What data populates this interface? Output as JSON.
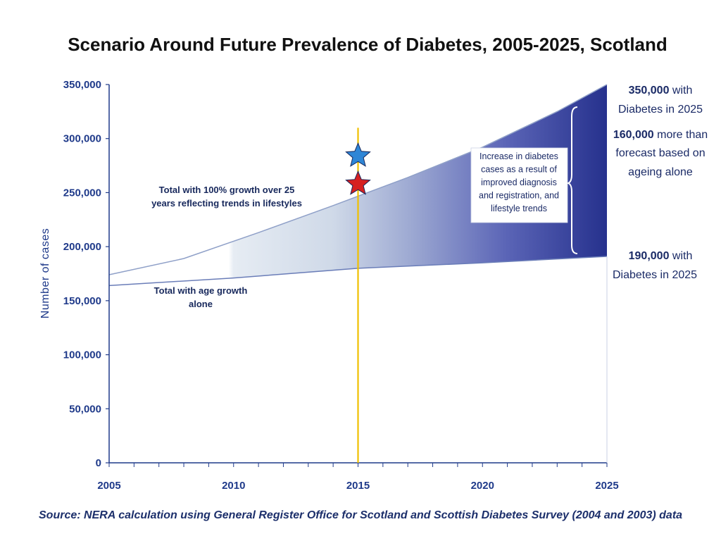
{
  "chart_data": {
    "type": "area",
    "title": "Scenario Around Future Prevalence of Diabetes, 2005-2025, Scotland",
    "xlabel": "",
    "ylabel": "Number of cases",
    "xlim": [
      2005,
      2025
    ],
    "ylim": [
      0,
      350000
    ],
    "x_ticks": [
      "2005",
      "2010",
      "2015",
      "2020",
      "2025"
    ],
    "y_ticks": [
      "0",
      "50,000",
      "100,000",
      "150,000",
      "200,000",
      "250,000",
      "300,000",
      "350,000"
    ],
    "series": [
      {
        "name": "Total with 100% growth over 25 years reflecting trends in lifestyles",
        "x": [
          2005,
          2008,
          2011,
          2014,
          2017,
          2020,
          2023,
          2025
        ],
        "values": [
          174000,
          189000,
          213000,
          238000,
          264000,
          292000,
          325000,
          350000
        ]
      },
      {
        "name": "Total with age growth alone",
        "x": [
          2005,
          2010,
          2015,
          2020,
          2025
        ],
        "values": [
          164000,
          171000,
          180000,
          185000,
          191000
        ]
      }
    ],
    "marker_line": {
      "x": 2015,
      "color": "#f0c000"
    },
    "stars": [
      {
        "x": 2015,
        "y": 284000,
        "color": "#2f86d6"
      },
      {
        "x": 2015,
        "y": 258000,
        "color": "#d62020"
      }
    ],
    "annotations": {
      "upper_label": [
        "Total with 100% growth over 25",
        "years reflecting trends in lifestyles"
      ],
      "lower_label": [
        "Total with age growth",
        "alone"
      ],
      "box": [
        "Increase in diabetes",
        "cases as a result of",
        "improved diagnosis",
        "and registration, and",
        "lifestyle trends"
      ],
      "side_top_value": "350,000",
      "side_top_rest": " with",
      "side_top_line2": "Diabetes in 2025",
      "side_mid_value": "160,000",
      "side_mid_rest": " more than",
      "side_mid_line2": "forecast based on",
      "side_mid_line3": "ageing alone",
      "side_bot_value": "190,000",
      "side_bot_rest": " with",
      "side_bot_line2": "Diabetes in 2025"
    },
    "colors": {
      "axis": "#1f3a8a",
      "fill_dark": "#2a3590",
      "fill_light": "#ffffff"
    }
  },
  "source": "Source: NERA calculation using General Register Office for Scotland and Scottish Diabetes Survey (2004 and 2003) data"
}
